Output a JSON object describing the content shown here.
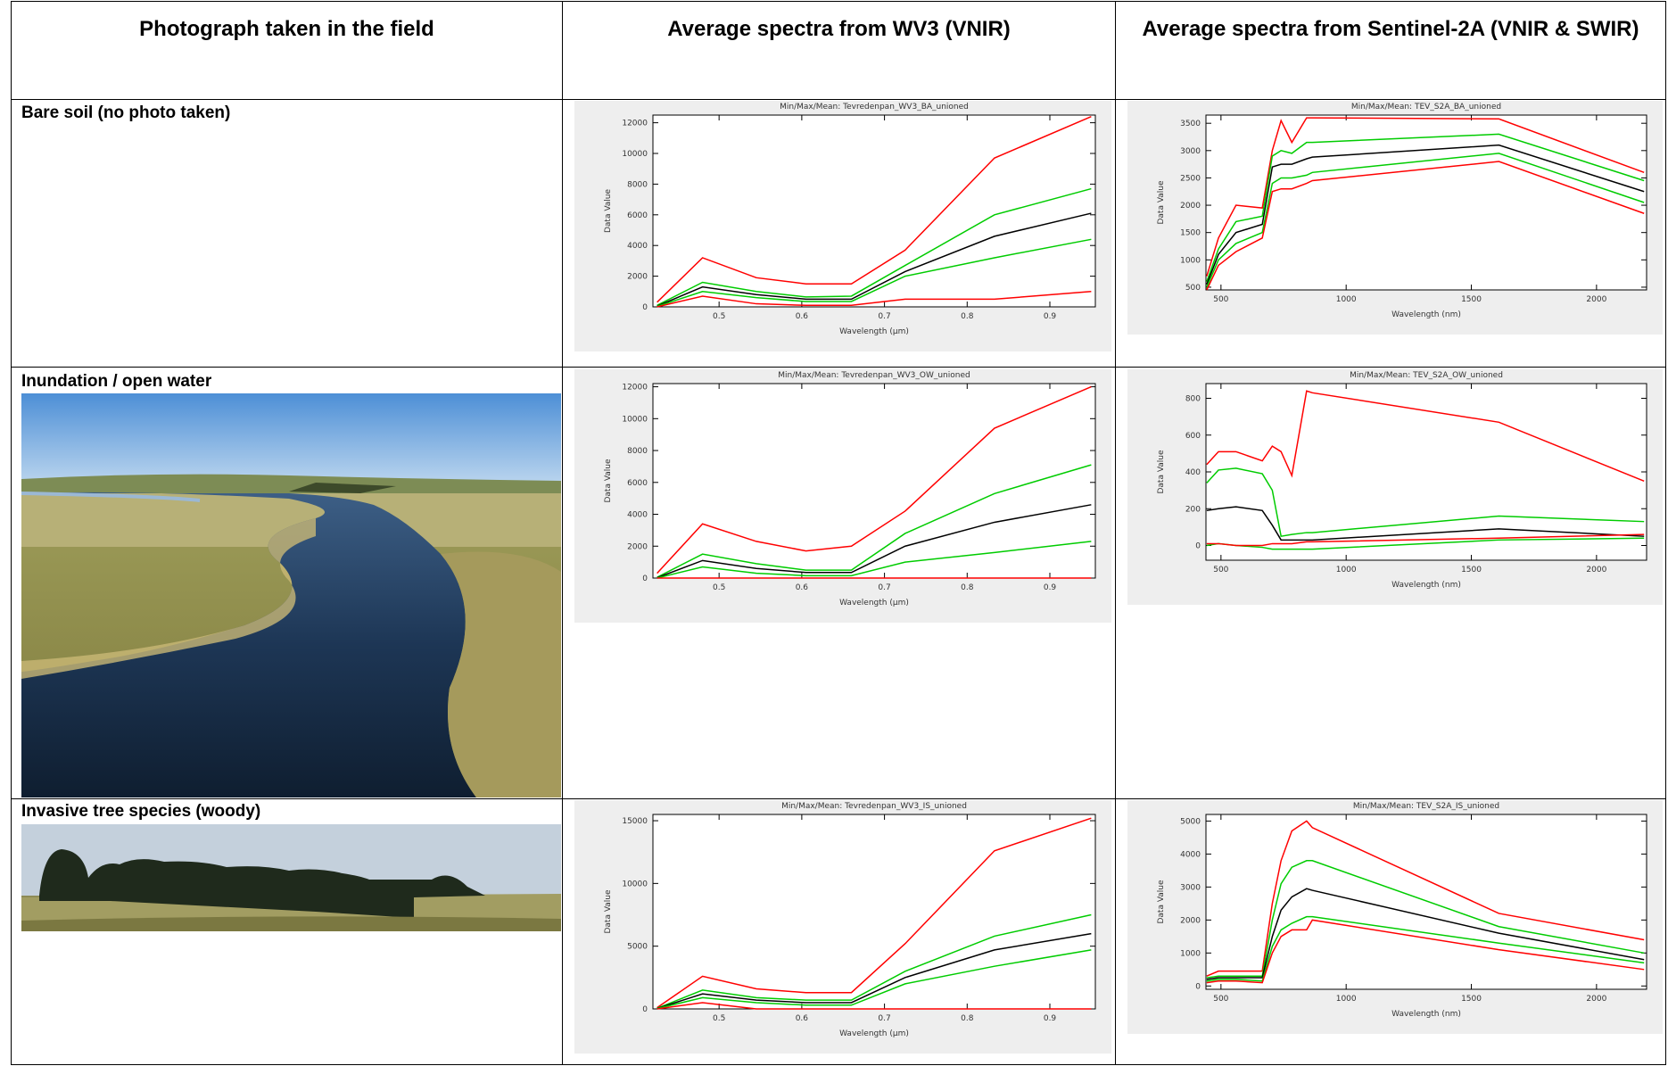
{
  "table": {
    "header": [
      "Photograph taken in the field",
      "Average spectra from WV3 (VNIR)",
      "Average spectra from Sentinel-2A (VNIR & SWIR)"
    ],
    "rows": [
      {
        "label": "Bare soil (no photo taken)",
        "charts": [
          {
            "type": "line",
            "title": "Min/Max/Mean: Tevredenpan_WV3_BA_unioned",
            "y_label": "Data Value",
            "x_label": "Wavelength (µm)",
            "x": [
              0.425,
              0.48,
              0.545,
              0.605,
              0.66,
              0.725,
              0.833,
              0.95
            ],
            "xlim": [
              0.42,
              0.955
            ],
            "xticks": [
              0.5,
              0.6,
              0.7,
              0.8,
              0.9
            ],
            "ylim": [
              0,
              12500
            ],
            "yticks": [
              0,
              2000,
              4000,
              6000,
              8000,
              10000,
              12000
            ],
            "series": [
              {
                "color": "#ff0000",
                "values": [
                  300,
                  3200,
                  1900,
                  1500,
                  1500,
                  3700,
                  9700,
                  12400
                ]
              },
              {
                "color": "#00cc00",
                "values": [
                  100,
                  1600,
                  1000,
                  650,
                  700,
                  2700,
                  6000,
                  7700
                ]
              },
              {
                "color": "#000000",
                "values": [
                  50,
                  1300,
                  800,
                  500,
                  500,
                  2300,
                  4600,
                  6100
                ]
              },
              {
                "color": "#00cc00",
                "values": [
                  30,
                  1000,
                  600,
                  350,
                  350,
                  2000,
                  3200,
                  4400
                ]
              },
              {
                "color": "#ff0000",
                "values": [
                  0,
                  700,
                  200,
                  100,
                  100,
                  500,
                  500,
                  1000
                ]
              }
            ]
          },
          {
            "type": "line",
            "title": "Min/Max/Mean: TEV_S2A_BA_unioned",
            "y_label": "Data Value",
            "x_label": "Wavelength (nm)",
            "x": [
              443,
              490,
              560,
              665,
              705,
              740,
              783,
              842,
              865,
              1610,
              2190
            ],
            "xlim": [
              440,
              2200
            ],
            "xticks": [
              500,
              1000,
              1500,
              2000
            ],
            "ylim": [
              450,
              3650
            ],
            "yticks": [
              500,
              1000,
              1500,
              2000,
              2500,
              3000,
              3500
            ],
            "series": [
              {
                "color": "#ff0000",
                "values": [
                  700,
                  1400,
                  2000,
                  1950,
                  3000,
                  3550,
                  3150,
                  3600,
                  3600,
                  3580,
                  2600
                ]
              },
              {
                "color": "#00cc00",
                "values": [
                  600,
                  1200,
                  1700,
                  1800,
                  2900,
                  3000,
                  2950,
                  3150,
                  3150,
                  3300,
                  2450
                ]
              },
              {
                "color": "#000000",
                "values": [
                  550,
                  1100,
                  1500,
                  1650,
                  2700,
                  2750,
                  2750,
                  2850,
                  2880,
                  3100,
                  2250
                ]
              },
              {
                "color": "#00cc00",
                "values": [
                  500,
                  1000,
                  1300,
                  1500,
                  2400,
                  2500,
                  2500,
                  2550,
                  2600,
                  2950,
                  2050
                ]
              },
              {
                "color": "#ff0000",
                "values": [
                  450,
                  900,
                  1150,
                  1400,
                  2250,
                  2300,
                  2300,
                  2400,
                  2450,
                  2800,
                  1850
                ]
              }
            ]
          }
        ]
      },
      {
        "label": "Inundation / open water",
        "charts": [
          {
            "type": "line",
            "title": "Min/Max/Mean: Tevredenpan_WV3_OW_unioned",
            "y_label": "Data Value",
            "x_label": "Wavelength (µm)",
            "x": [
              0.425,
              0.48,
              0.545,
              0.605,
              0.66,
              0.725,
              0.833,
              0.95
            ],
            "xlim": [
              0.42,
              0.955
            ],
            "xticks": [
              0.5,
              0.6,
              0.7,
              0.8,
              0.9
            ],
            "ylim": [
              0,
              12200
            ],
            "yticks": [
              0,
              2000,
              4000,
              6000,
              8000,
              10000,
              12000
            ],
            "series": [
              {
                "color": "#ff0000",
                "values": [
                  300,
                  3400,
                  2300,
                  1700,
                  2000,
                  4200,
                  9400,
                  12000
                ]
              },
              {
                "color": "#00cc00",
                "values": [
                  50,
                  1500,
                  900,
                  500,
                  500,
                  2800,
                  5300,
                  7100
                ]
              },
              {
                "color": "#000000",
                "values": [
                  20,
                  1100,
                  600,
                  350,
                  350,
                  2000,
                  3500,
                  4600
                ]
              },
              {
                "color": "#00cc00",
                "values": [
                  0,
                  700,
                  300,
                  150,
                  150,
                  1000,
                  1600,
                  2300
                ]
              },
              {
                "color": "#ff0000",
                "values": [
                  0,
                  0,
                  0,
                  0,
                  0,
                  0,
                  0,
                  0
                ]
              }
            ]
          },
          {
            "type": "line",
            "title": "Min/Max/Mean: TEV_S2A_OW_unioned",
            "y_label": "Data Value",
            "x_label": "Wavelength (nm)",
            "x": [
              443,
              490,
              560,
              665,
              705,
              740,
              783,
              842,
              865,
              1610,
              2190
            ],
            "xlim": [
              440,
              2200
            ],
            "xticks": [
              500,
              1000,
              1500,
              2000
            ],
            "ylim": [
              -80,
              880
            ],
            "yticks": [
              0,
              200,
              400,
              600,
              800
            ],
            "series": [
              {
                "color": "#ff0000",
                "values": [
                  440,
                  510,
                  510,
                  460,
                  540,
                  510,
                  380,
                  840,
                  830,
                  670,
                  350
                ]
              },
              {
                "color": "#00cc00",
                "values": [
                  340,
                  410,
                  420,
                  390,
                  300,
                  50,
                  60,
                  70,
                  70,
                  160,
                  130
                ]
              },
              {
                "color": "#000000",
                "values": [
                  190,
                  200,
                  210,
                  190,
                  110,
                  30,
                  30,
                  30,
                  30,
                  90,
                  50
                ]
              },
              {
                "color": "#00cc00",
                "values": [
                  0,
                  10,
                  0,
                  -10,
                  -20,
                  -20,
                  -20,
                  -20,
                  -20,
                  30,
                  40
                ]
              },
              {
                "color": "#ff0000",
                "values": [
                  10,
                  10,
                  0,
                  0,
                  10,
                  10,
                  10,
                  20,
                  20,
                  40,
                  60
                ]
              }
            ]
          }
        ]
      },
      {
        "label": "Invasive tree species (woody)",
        "charts": [
          {
            "type": "line",
            "title": "Min/Max/Mean: Tevredenpan_WV3_IS_unioned",
            "y_label": "Data Value",
            "x_label": "Wavelength (µm)",
            "x": [
              0.425,
              0.48,
              0.545,
              0.605,
              0.66,
              0.725,
              0.833,
              0.95
            ],
            "xlim": [
              0.42,
              0.955
            ],
            "xticks": [
              0.5,
              0.6,
              0.7,
              0.8,
              0.9
            ],
            "ylim": [
              0,
              15500
            ],
            "yticks": [
              0,
              5000,
              10000,
              15000
            ],
            "series": [
              {
                "color": "#ff0000",
                "values": [
                  100,
                  2600,
                  1600,
                  1300,
                  1300,
                  5200,
                  12600,
                  15200
                ]
              },
              {
                "color": "#00cc00",
                "values": [
                  50,
                  1500,
                  900,
                  700,
                  700,
                  3000,
                  5800,
                  7500
                ]
              },
              {
                "color": "#000000",
                "values": [
                  30,
                  1200,
                  700,
                  500,
                  500,
                  2500,
                  4700,
                  6000
                ]
              },
              {
                "color": "#00cc00",
                "values": [
                  20,
                  900,
                  500,
                  300,
                  300,
                  2000,
                  3400,
                  4700
                ]
              },
              {
                "color": "#ff0000",
                "values": [
                  0,
                  500,
                  0,
                  0,
                  0,
                  0,
                  0,
                  0
                ]
              }
            ]
          },
          {
            "type": "line",
            "title": "Min/Max/Mean: TEV_S2A_IS_unioned",
            "y_label": "Data Value",
            "x_label": "Wavelength (nm)",
            "x": [
              443,
              490,
              560,
              665,
              705,
              740,
              783,
              842,
              865,
              1610,
              2190
            ],
            "xlim": [
              440,
              2200
            ],
            "xticks": [
              500,
              1000,
              1500,
              2000
            ],
            "ylim": [
              -100,
              5200
            ],
            "yticks": [
              0,
              1000,
              2000,
              3000,
              4000,
              5000
            ],
            "series": [
              {
                "color": "#ff0000",
                "values": [
                  300,
                  450,
                  450,
                  450,
                  2500,
                  3800,
                  4700,
                  5000,
                  4800,
                  2200,
                  1400
                ]
              },
              {
                "color": "#00cc00",
                "values": [
                  250,
                  300,
                  300,
                  300,
                  2000,
                  3100,
                  3600,
                  3800,
                  3800,
                  1800,
                  1000
                ]
              },
              {
                "color": "#000000",
                "values": [
                  200,
                  250,
                  250,
                  250,
                  1500,
                  2300,
                  2700,
                  2950,
                  2900,
                  1600,
                  800
                ]
              },
              {
                "color": "#00cc00",
                "values": [
                  150,
                  200,
                  200,
                  150,
                  1200,
                  1700,
                  1900,
                  2100,
                  2100,
                  1300,
                  700
                ]
              },
              {
                "color": "#ff0000",
                "values": [
                  100,
                  150,
                  150,
                  100,
                  1000,
                  1500,
                  1700,
                  1700,
                  2000,
                  1100,
                  500
                ]
              }
            ]
          }
        ]
      }
    ]
  }
}
